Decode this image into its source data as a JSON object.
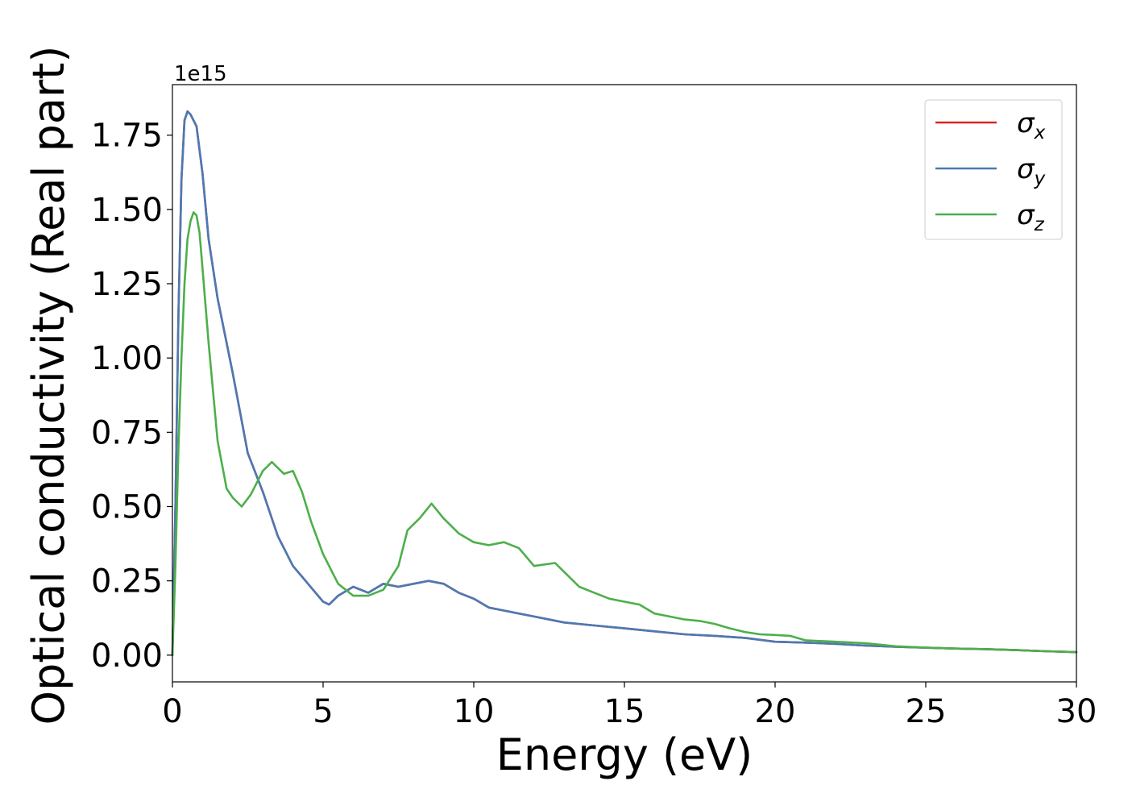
{
  "chart_data": {
    "type": "line",
    "title": "",
    "xlabel": "Energy (eV)",
    "ylabel": "Optical conductivity (Real part)",
    "y_offset_label": "1e15",
    "xlim": [
      0,
      30
    ],
    "ylim": [
      -0.09,
      1.92
    ],
    "x_ticks": [
      0,
      5,
      10,
      15,
      20,
      25,
      30
    ],
    "x_tick_labels": [
      "0",
      "5",
      "10",
      "15",
      "20",
      "25",
      "30"
    ],
    "y_ticks": [
      0.0,
      0.25,
      0.5,
      0.75,
      1.0,
      1.25,
      1.5,
      1.75
    ],
    "y_tick_labels": [
      "0.00",
      "0.25",
      "0.50",
      "0.75",
      "1.00",
      "1.25",
      "1.50",
      "1.75"
    ],
    "grid": false,
    "legend_position": "top-right",
    "series": [
      {
        "name": "σx",
        "legend_symbol": "σ",
        "legend_sub": "x",
        "color": "#d62728",
        "x": [
          0,
          0.1,
          0.2,
          0.3,
          0.4,
          0.5,
          0.6,
          0.8,
          1.0,
          1.2,
          1.5,
          2.0,
          2.5,
          3.0,
          3.5,
          4.0,
          4.5,
          5.0,
          5.2,
          5.5,
          6.0,
          6.5,
          7.0,
          7.5,
          8.0,
          8.5,
          9.0,
          9.5,
          10.0,
          10.5,
          11.0,
          12.0,
          13.0,
          14.0,
          15.0,
          16.0,
          17.0,
          18.0,
          19.0,
          20.0,
          21.0,
          22.0,
          23.0,
          24.0,
          25.0,
          26.0,
          27.0,
          28.0,
          29.0,
          30.0
        ],
        "values": [
          0.0,
          0.5,
          1.15,
          1.6,
          1.8,
          1.83,
          1.82,
          1.78,
          1.62,
          1.4,
          1.2,
          0.95,
          0.68,
          0.55,
          0.4,
          0.3,
          0.24,
          0.18,
          0.17,
          0.2,
          0.23,
          0.21,
          0.24,
          0.23,
          0.24,
          0.25,
          0.24,
          0.21,
          0.19,
          0.16,
          0.15,
          0.13,
          0.11,
          0.1,
          0.09,
          0.08,
          0.07,
          0.065,
          0.058,
          0.045,
          0.042,
          0.038,
          0.032,
          0.028,
          0.025,
          0.022,
          0.02,
          0.017,
          0.013,
          0.01
        ]
      },
      {
        "name": "σy",
        "legend_symbol": "σ",
        "legend_sub": "y",
        "color": "#4a7ab4",
        "x": [
          0,
          0.1,
          0.2,
          0.3,
          0.4,
          0.5,
          0.6,
          0.8,
          1.0,
          1.2,
          1.5,
          2.0,
          2.5,
          3.0,
          3.5,
          4.0,
          4.5,
          5.0,
          5.2,
          5.5,
          6.0,
          6.5,
          7.0,
          7.5,
          8.0,
          8.5,
          9.0,
          9.5,
          10.0,
          10.5,
          11.0,
          12.0,
          13.0,
          14.0,
          15.0,
          16.0,
          17.0,
          18.0,
          19.0,
          20.0,
          21.0,
          22.0,
          23.0,
          24.0,
          25.0,
          26.0,
          27.0,
          28.0,
          29.0,
          30.0
        ],
        "values": [
          0.0,
          0.5,
          1.15,
          1.6,
          1.8,
          1.83,
          1.82,
          1.78,
          1.62,
          1.4,
          1.2,
          0.95,
          0.68,
          0.55,
          0.4,
          0.3,
          0.24,
          0.18,
          0.17,
          0.2,
          0.23,
          0.21,
          0.24,
          0.23,
          0.24,
          0.25,
          0.24,
          0.21,
          0.19,
          0.16,
          0.15,
          0.13,
          0.11,
          0.1,
          0.09,
          0.08,
          0.07,
          0.065,
          0.058,
          0.045,
          0.042,
          0.038,
          0.032,
          0.028,
          0.025,
          0.022,
          0.02,
          0.017,
          0.013,
          0.01
        ]
      },
      {
        "name": "σz",
        "legend_symbol": "σ",
        "legend_sub": "z",
        "color": "#4daf4a",
        "x": [
          0,
          0.1,
          0.2,
          0.3,
          0.4,
          0.5,
          0.6,
          0.7,
          0.8,
          0.9,
          1.0,
          1.2,
          1.5,
          1.8,
          2.0,
          2.3,
          2.6,
          3.0,
          3.3,
          3.7,
          4.0,
          4.3,
          4.6,
          5.0,
          5.5,
          6.0,
          6.5,
          7.0,
          7.5,
          7.8,
          8.2,
          8.6,
          9.0,
          9.5,
          10.0,
          10.5,
          11.0,
          11.5,
          12.0,
          12.7,
          13.0,
          13.5,
          14.0,
          14.5,
          15.0,
          15.5,
          16.0,
          16.5,
          17.0,
          17.5,
          18.0,
          18.5,
          19.0,
          19.5,
          20.0,
          20.5,
          21.0,
          22.0,
          23.0,
          24.0,
          25.0,
          26.0,
          27.0,
          28.0,
          29.0,
          30.0
        ],
        "values": [
          0.0,
          0.3,
          0.7,
          1.0,
          1.25,
          1.4,
          1.46,
          1.49,
          1.48,
          1.42,
          1.3,
          1.05,
          0.72,
          0.56,
          0.53,
          0.5,
          0.54,
          0.62,
          0.65,
          0.61,
          0.62,
          0.55,
          0.45,
          0.34,
          0.24,
          0.2,
          0.2,
          0.22,
          0.3,
          0.42,
          0.46,
          0.51,
          0.46,
          0.41,
          0.38,
          0.37,
          0.38,
          0.36,
          0.3,
          0.31,
          0.28,
          0.23,
          0.21,
          0.19,
          0.18,
          0.17,
          0.14,
          0.13,
          0.12,
          0.115,
          0.105,
          0.09,
          0.078,
          0.07,
          0.068,
          0.065,
          0.05,
          0.045,
          0.04,
          0.03,
          0.025,
          0.022,
          0.02,
          0.017,
          0.013,
          0.01
        ]
      }
    ]
  }
}
